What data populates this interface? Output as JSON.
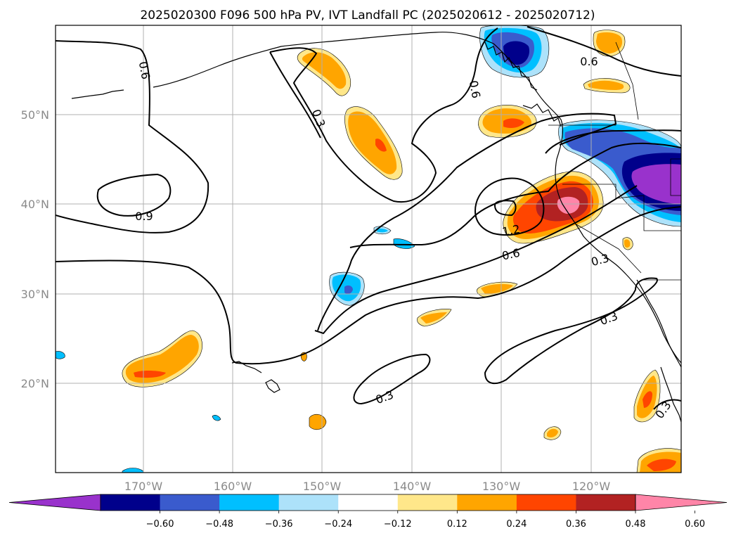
{
  "title": "2025020300 F096 500 hPa PV, IVT Landfall PC (2025020612 - 2025020712)",
  "map": {
    "lon_labels": [
      "170°W",
      "160°W",
      "150°W",
      "140°W",
      "130°W",
      "120°W"
    ],
    "lat_labels": [
      "50°N",
      "40°N",
      "30°N",
      "20°N"
    ],
    "lon_ticks": [
      -170,
      -160,
      -150,
      -140,
      -130,
      -120
    ],
    "lat_ticks": [
      50,
      40,
      30,
      20
    ],
    "grid": true
  },
  "contour_labels": {
    "l1": "0.6",
    "l2": "0.6",
    "l3": "0.6",
    "l4": "0.3",
    "l5": "0.9",
    "l6": "1.2",
    "l7": "0.6",
    "l8": "0.3",
    "l9": "0.3",
    "l10": "0.3",
    "l11": "0.3"
  },
  "colorbar": {
    "colors": [
      "#9932CC",
      "#00008B",
      "#3A5BCD",
      "#00BFFF",
      "#ADE2FA",
      "#FFFFFF",
      "#FFE78A",
      "#FFA500",
      "#FF4500",
      "#B22222",
      "#FF85A8"
    ],
    "tick_labels": [
      "−0.60",
      "−0.48",
      "−0.36",
      "−0.24",
      "−0.12",
      "0.12",
      "0.24",
      "0.36",
      "0.48",
      "0.60"
    ]
  }
}
